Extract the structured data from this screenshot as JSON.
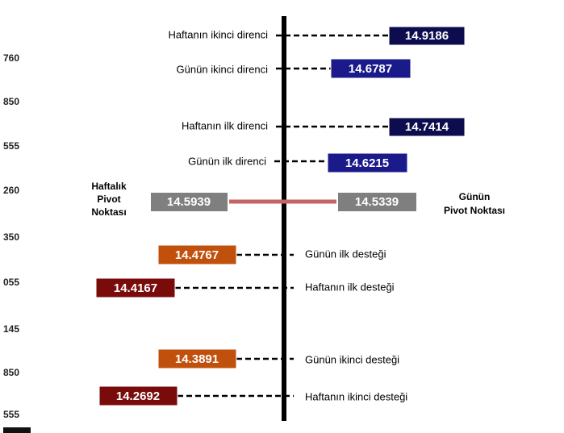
{
  "left_axis_labels": [
    "760",
    "850",
    "555",
    "260",
    "350",
    "055",
    "145",
    "850",
    "555"
  ],
  "resistances": [
    {
      "label": "Haftanın ikinci direnci",
      "value": "14.9186"
    },
    {
      "label": "Günün ikinci direnci",
      "value": "14.6787"
    },
    {
      "label": "Haftanın ilk direnci",
      "value": "14.7414"
    },
    {
      "label": "Günün ilk direnci",
      "value": "14.6215"
    }
  ],
  "pivot": {
    "weekly_label": [
      "Haftalık",
      "Pivot",
      "Noktası"
    ],
    "weekly_value": "14.5939",
    "daily_label": [
      "Günün",
      "Pivot Noktası"
    ],
    "daily_value": "14.5339"
  },
  "supports": [
    {
      "label": "Günün ilk desteği",
      "value": "14.4767"
    },
    {
      "label": "Haftanın ilk desteği",
      "value": "14.4167"
    },
    {
      "label": "Günün ikinci desteği",
      "value": "14.3891"
    },
    {
      "label": "Haftanın ikinci desteği",
      "value": "14.2692"
    }
  ]
}
